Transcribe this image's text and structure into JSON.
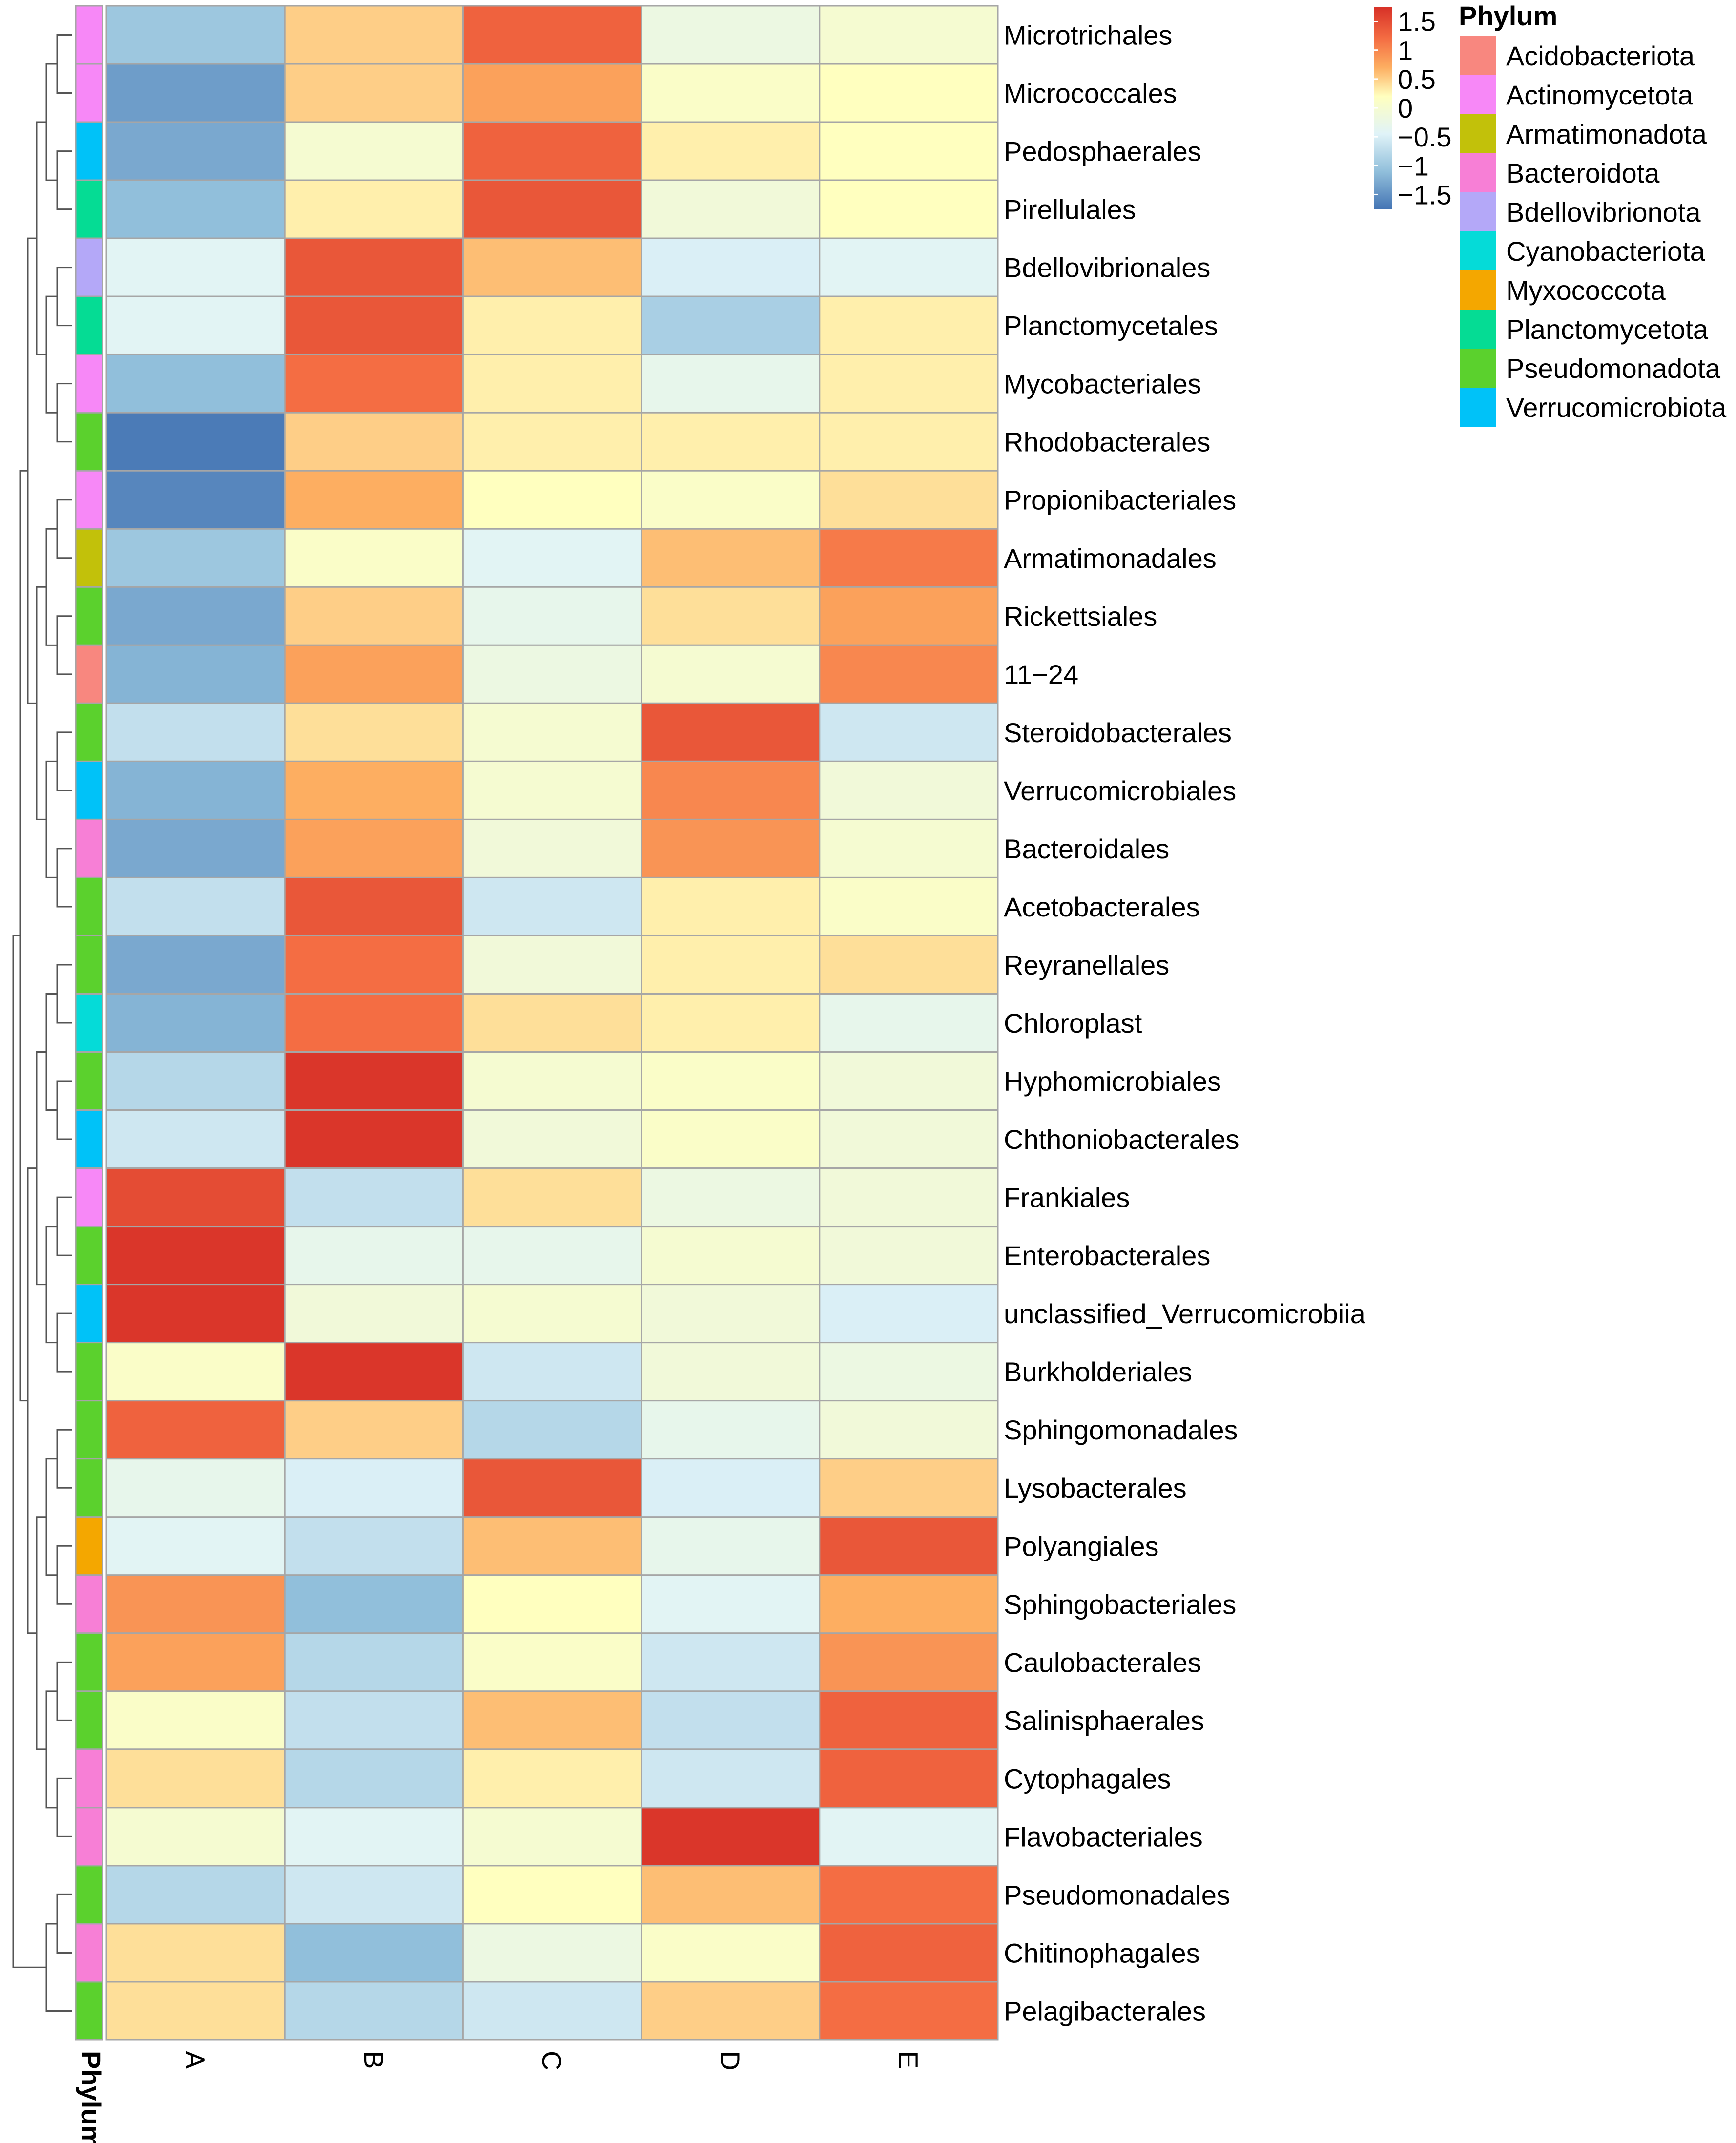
{
  "chart_data": {
    "type": "heatmap",
    "title": "",
    "columns": [
      "A",
      "B",
      "C",
      "D",
      "E"
    ],
    "annotation_title": "Phylum",
    "rows": [
      {
        "label": "Microtrichales",
        "phylum": "Actinomycetota",
        "values": [
          -1.0,
          0.5,
          1.3,
          -0.2,
          0.0
        ]
      },
      {
        "label": "Micrococcales",
        "phylum": "Actinomycetota",
        "values": [
          -1.4,
          0.5,
          0.8,
          0.1,
          0.2
        ]
      },
      {
        "label": "Pedosphaerales",
        "phylum": "Verrucomicrobiota",
        "values": [
          -1.3,
          0.0,
          1.3,
          0.3,
          0.2
        ]
      },
      {
        "label": "Pirellulales",
        "phylum": "Planctomycetota",
        "values": [
          -1.1,
          0.3,
          1.4,
          -0.1,
          0.2
        ]
      },
      {
        "label": "Bdellovibrionales",
        "phylum": "Bdellovibrionota",
        "values": [
          -0.4,
          1.4,
          0.6,
          -0.5,
          -0.4
        ]
      },
      {
        "label": "Planctomycetales",
        "phylum": "Planctomycetota",
        "values": [
          -0.4,
          1.4,
          0.3,
          -0.9,
          0.3
        ]
      },
      {
        "label": "Mycobacteriales",
        "phylum": "Actinomycetota",
        "values": [
          -1.1,
          1.2,
          0.3,
          -0.3,
          0.3
        ]
      },
      {
        "label": "Rhodobacterales",
        "phylum": "Pseudomonadota",
        "values": [
          -1.7,
          0.5,
          0.3,
          0.3,
          0.3
        ]
      },
      {
        "label": "Propionibacteriales",
        "phylum": "Actinomycetota",
        "values": [
          -1.6,
          0.7,
          0.2,
          0.1,
          0.4
        ]
      },
      {
        "label": "Armatimonadales",
        "phylum": "Armatimonadota",
        "values": [
          -1.0,
          0.1,
          -0.4,
          0.6,
          1.1
        ]
      },
      {
        "label": "Rickettsiales",
        "phylum": "Pseudomonadota",
        "values": [
          -1.3,
          0.5,
          -0.3,
          0.4,
          0.8
        ]
      },
      {
        "label": "11−24",
        "phylum": "Acidobacteriota",
        "values": [
          -1.2,
          0.8,
          -0.2,
          0.0,
          1.0
        ]
      },
      {
        "label": "Steroidobacterales",
        "phylum": "Pseudomonadota",
        "values": [
          -0.7,
          0.4,
          0.0,
          1.4,
          -0.6
        ]
      },
      {
        "label": "Verrucomicrobiales",
        "phylum": "Verrucomicrobiota",
        "values": [
          -1.2,
          0.7,
          0.0,
          1.0,
          -0.1
        ]
      },
      {
        "label": "Bacteroidales",
        "phylum": "Bacteroidota",
        "values": [
          -1.3,
          0.8,
          -0.1,
          0.9,
          0.0
        ]
      },
      {
        "label": "Acetobacterales",
        "phylum": "Pseudomonadota",
        "values": [
          -0.7,
          1.4,
          -0.6,
          0.3,
          0.1
        ]
      },
      {
        "label": "Reyranellales",
        "phylum": "Pseudomonadota",
        "values": [
          -1.3,
          1.2,
          -0.1,
          0.3,
          0.4
        ]
      },
      {
        "label": "Chloroplast",
        "phylum": "Cyanobacteriota",
        "values": [
          -1.2,
          1.2,
          0.4,
          0.3,
          -0.3
        ]
      },
      {
        "label": "Hyphomicrobiales",
        "phylum": "Pseudomonadota",
        "values": [
          -0.8,
          1.7,
          0.0,
          0.1,
          -0.1
        ]
      },
      {
        "label": "Chthoniobacterales",
        "phylum": "Verrucomicrobiota",
        "values": [
          -0.6,
          1.7,
          -0.1,
          0.1,
          -0.1
        ]
      },
      {
        "label": "Frankiales",
        "phylum": "Actinomycetota",
        "values": [
          1.5,
          -0.7,
          0.4,
          -0.2,
          -0.1
        ]
      },
      {
        "label": "Enterobacterales",
        "phylum": "Pseudomonadota",
        "values": [
          1.7,
          -0.3,
          -0.3,
          0.0,
          -0.1
        ]
      },
      {
        "label": "unclassified_Verrucomicrobiia",
        "phylum": "Verrucomicrobiota",
        "values": [
          1.7,
          -0.1,
          0.0,
          -0.1,
          -0.5
        ]
      },
      {
        "label": "Burkholderiales",
        "phylum": "Pseudomonadota",
        "values": [
          0.1,
          1.7,
          -0.6,
          -0.1,
          -0.2
        ]
      },
      {
        "label": "Sphingomonadales",
        "phylum": "Pseudomonadota",
        "values": [
          1.3,
          0.5,
          -0.8,
          -0.3,
          -0.1
        ]
      },
      {
        "label": "Lysobacterales",
        "phylum": "Pseudomonadota",
        "values": [
          -0.3,
          -0.5,
          1.4,
          -0.5,
          0.5
        ]
      },
      {
        "label": "Polyangiales",
        "phylum": "Myxococcota",
        "values": [
          -0.4,
          -0.7,
          0.6,
          -0.3,
          1.4
        ]
      },
      {
        "label": "Sphingobacteriales",
        "phylum": "Bacteroidota",
        "values": [
          0.9,
          -1.1,
          0.2,
          -0.4,
          0.7
        ]
      },
      {
        "label": "Caulobacterales",
        "phylum": "Pseudomonadota",
        "values": [
          0.8,
          -0.8,
          0.1,
          -0.6,
          0.9
        ]
      },
      {
        "label": "Salinisphaerales",
        "phylum": "Pseudomonadota",
        "values": [
          0.1,
          -0.7,
          0.6,
          -0.7,
          1.3
        ]
      },
      {
        "label": "Cytophagales",
        "phylum": "Bacteroidota",
        "values": [
          0.4,
          -0.8,
          0.3,
          -0.6,
          1.3
        ]
      },
      {
        "label": "Flavobacteriales",
        "phylum": "Bacteroidota",
        "values": [
          0.0,
          -0.4,
          0.0,
          1.7,
          -0.4
        ]
      },
      {
        "label": "Pseudomonadales",
        "phylum": "Pseudomonadota",
        "values": [
          -0.8,
          -0.6,
          0.2,
          0.6,
          1.2
        ]
      },
      {
        "label": "Chitinophagales",
        "phylum": "Bacteroidota",
        "values": [
          0.4,
          -1.1,
          -0.2,
          0.1,
          1.3
        ]
      },
      {
        "label": "Pelagibacterales",
        "phylum": "Pseudomonadota",
        "values": [
          0.4,
          -0.8,
          -0.6,
          0.5,
          1.2
        ]
      }
    ],
    "color_scale": {
      "ticks": [
        1.5,
        1,
        0.5,
        0,
        -0.5,
        -1,
        -1.5
      ],
      "tick_labels": [
        "1.5",
        "1",
        "0.5",
        "0",
        "−0.5",
        "−1",
        "−1.5"
      ],
      "range": [
        -1.75,
        1.75
      ],
      "stops": [
        {
          "value": -1.75,
          "color": "#4575b4"
        },
        {
          "value": -1.1,
          "color": "#91bfdb"
        },
        {
          "value": -0.45,
          "color": "#e0f3f8"
        },
        {
          "value": 0.2,
          "color": "#ffffbf"
        },
        {
          "value": 0.7,
          "color": "#fdae61"
        },
        {
          "value": 1.2,
          "color": "#f46d43"
        },
        {
          "value": 1.75,
          "color": "#d73027"
        }
      ]
    },
    "legend": {
      "title": "Phylum",
      "placement": "top-right",
      "entries": [
        {
          "name": "Acidobacteriota",
          "color": "#F8877F"
        },
        {
          "name": "Actinomycetota",
          "color": "#F788F7"
        },
        {
          "name": "Armatimonadota",
          "color": "#C2C10A"
        },
        {
          "name": "Bacteroidota",
          "color": "#F77FD6"
        },
        {
          "name": "Bdellovibrionota",
          "color": "#B4A8F8"
        },
        {
          "name": "Cyanobacteriota",
          "color": "#05DBD8"
        },
        {
          "name": "Myxococcota",
          "color": "#F4A700"
        },
        {
          "name": "Planctomycetota",
          "color": "#05DC94"
        },
        {
          "name": "Pseudomonadota",
          "color": "#5BD12D"
        },
        {
          "name": "Verrucomicrobiota",
          "color": "#00C2F8"
        }
      ]
    },
    "row_dendrogram": true,
    "grid": true,
    "cell_border_color": "#a6a6a6"
  }
}
